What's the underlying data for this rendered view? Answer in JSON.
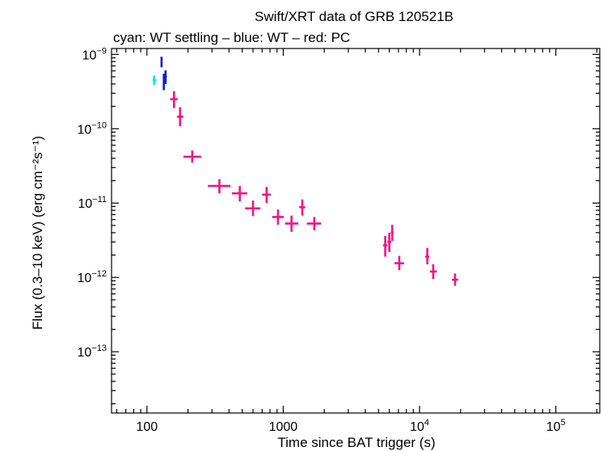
{
  "chart_data": {
    "type": "scatter",
    "title": "Swift/XRT data of GRB 120521B",
    "subtitle": "cyan: WT settling – blue: WT – red: PC",
    "xlabel": "Time since BAT trigger (s)",
    "ylabel": "Flux (0.3–10 keV) (erg cm⁻²s⁻¹)",
    "x_scale": "log",
    "y_scale": "log",
    "xlim": [
      55,
      210000
    ],
    "ylim": [
      1.5e-14,
      1.2e-09
    ],
    "x_ticks": [
      {
        "value": 100,
        "label": "100"
      },
      {
        "value": 1000,
        "label": "1000"
      },
      {
        "value": 10000,
        "base": "10",
        "exp": "4"
      },
      {
        "value": 100000,
        "base": "10",
        "exp": "5"
      }
    ],
    "y_ticks": [
      {
        "value": 1e-09,
        "base": "10",
        "exp": "−9"
      },
      {
        "value": 1e-10,
        "base": "10",
        "exp": "−10"
      },
      {
        "value": 1e-11,
        "base": "10",
        "exp": "−11"
      },
      {
        "value": 1e-12,
        "base": "10",
        "exp": "−12"
      },
      {
        "value": 1e-13,
        "base": "10",
        "exp": "−13"
      }
    ],
    "series": [
      {
        "color": "#00e5ff",
        "points": [
          {
            "x": 113,
            "xlo": 110,
            "xhi": 117,
            "y": 4.5e-10,
            "ylo": 3.9e-10,
            "yhi": 5.2e-10
          }
        ]
      },
      {
        "color": "#0a1ee0",
        "points": [
          {
            "x": 128,
            "xlo": 126,
            "xhi": 130,
            "y": 7.9e-10,
            "ylo": 6.7e-10,
            "yhi": 9.3e-10
          },
          {
            "x": 133,
            "xlo": 131,
            "xhi": 135,
            "y": 4.5e-10,
            "ylo": 3.3e-10,
            "yhi": 5.5e-10
          },
          {
            "x": 137,
            "xlo": 135,
            "xhi": 140,
            "y": 5e-10,
            "ylo": 4e-10,
            "yhi": 6.1e-10
          }
        ]
      },
      {
        "color": "#f0157f",
        "points": [
          {
            "x": 158,
            "xlo": 148,
            "xhi": 168,
            "y": 2.5e-10,
            "ylo": 1.9e-10,
            "yhi": 3.2e-10
          },
          {
            "x": 175,
            "xlo": 166,
            "xhi": 185,
            "y": 1.45e-10,
            "ylo": 1.08e-10,
            "yhi": 1.95e-10
          },
          {
            "x": 215,
            "xlo": 185,
            "xhi": 250,
            "y": 4.2e-11,
            "ylo": 3.5e-11,
            "yhi": 5.1e-11
          },
          {
            "x": 340,
            "xlo": 280,
            "xhi": 410,
            "y": 1.7e-11,
            "ylo": 1.35e-11,
            "yhi": 2.1e-11
          },
          {
            "x": 480,
            "xlo": 420,
            "xhi": 545,
            "y": 1.35e-11,
            "ylo": 1.05e-11,
            "yhi": 1.7e-11
          },
          {
            "x": 600,
            "xlo": 525,
            "xhi": 680,
            "y": 8.5e-12,
            "ylo": 6.7e-12,
            "yhi": 1.08e-11
          },
          {
            "x": 755,
            "xlo": 700,
            "xhi": 810,
            "y": 1.3e-11,
            "ylo": 1e-11,
            "yhi": 1.65e-11
          },
          {
            "x": 915,
            "xlo": 830,
            "xhi": 1010,
            "y": 6.5e-12,
            "ylo": 5.1e-12,
            "yhi": 8.2e-12
          },
          {
            "x": 1150,
            "xlo": 1030,
            "xhi": 1290,
            "y": 5.3e-12,
            "ylo": 4.1e-12,
            "yhi": 6.8e-12
          },
          {
            "x": 1380,
            "xlo": 1310,
            "xhi": 1450,
            "y": 8.8e-12,
            "ylo": 6.8e-12,
            "yhi": 1.12e-11
          },
          {
            "x": 1690,
            "xlo": 1490,
            "xhi": 1900,
            "y": 5.3e-12,
            "ylo": 4.3e-12,
            "yhi": 6.5e-12
          },
          {
            "x": 5600,
            "xlo": 5400,
            "xhi": 5800,
            "y": 2.7e-12,
            "ylo": 1.9e-12,
            "yhi": 3.6e-12
          },
          {
            "x": 6000,
            "xlo": 5800,
            "xhi": 6200,
            "y": 3e-12,
            "ylo": 2.2e-12,
            "yhi": 4e-12
          },
          {
            "x": 6300,
            "xlo": 6150,
            "xhi": 6450,
            "y": 4e-12,
            "ylo": 3.1e-12,
            "yhi": 5.1e-12
          },
          {
            "x": 7100,
            "xlo": 6550,
            "xhi": 7700,
            "y": 1.55e-12,
            "ylo": 1.25e-12,
            "yhi": 1.95e-12
          },
          {
            "x": 11400,
            "xlo": 11000,
            "xhi": 11800,
            "y": 1.9e-12,
            "ylo": 1.5e-12,
            "yhi": 2.5e-12
          },
          {
            "x": 12600,
            "xlo": 11900,
            "xhi": 13400,
            "y": 1.2e-12,
            "ylo": 9.5e-13,
            "yhi": 1.5e-12
          },
          {
            "x": 18200,
            "xlo": 17300,
            "xhi": 19200,
            "y": 9.3e-13,
            "ylo": 7.7e-13,
            "yhi": 1.13e-12
          }
        ]
      }
    ]
  }
}
